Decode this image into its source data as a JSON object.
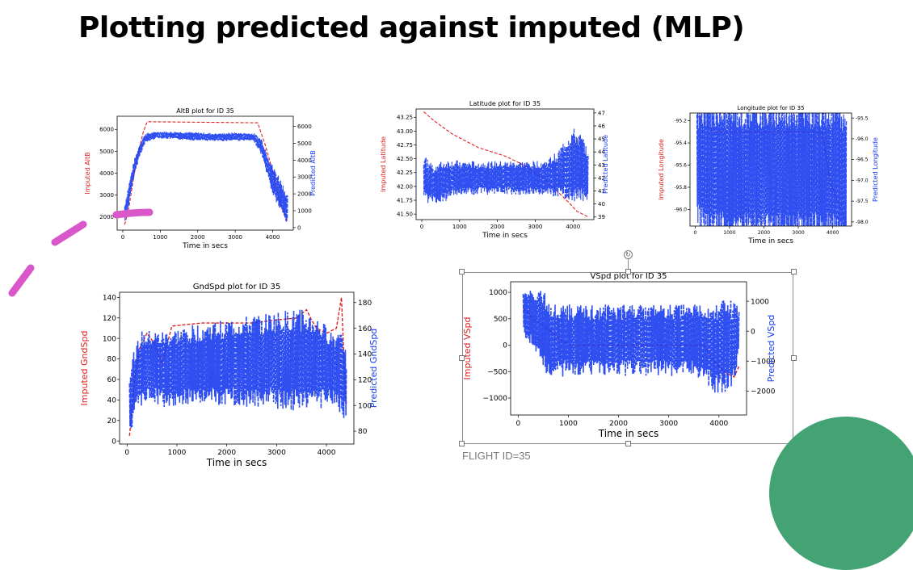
{
  "slide": {
    "title": "Plotting predicted against imputed (MLP)",
    "caption": "FLIGHT ID=35"
  },
  "colors": {
    "imputed": "#dd2222",
    "predicted": "#1a3cf0",
    "accent_green": "#44a373",
    "annotation_pink": "#d957c8"
  },
  "chart_data": [
    {
      "type": "line",
      "title": "AltB plot for ID 35",
      "xlabel": "Time in secs",
      "ylabel_left": "Imputed AltB",
      "ylabel_right": "Predicted AltB",
      "xlim": [
        -150,
        4550
      ],
      "ylim_left": [
        1400,
        6600
      ],
      "ylim_right": [
        -150,
        6600
      ],
      "xticks": [
        0,
        1000,
        2000,
        3000,
        4000
      ],
      "yticks_left": [
        2000,
        3000,
        4000,
        5000,
        6000
      ],
      "yticks_right": [
        0,
        1000,
        2000,
        3000,
        4000,
        5000,
        6000
      ],
      "series": [
        {
          "name": "Imputed AltB",
          "axis": "left",
          "style": "dashed",
          "x": [
            50,
            150,
            300,
            450,
            550,
            650,
            3600,
            3800,
            4000,
            4100,
            4200,
            4400
          ],
          "y": [
            1650,
            2300,
            3900,
            5200,
            5900,
            6350,
            6300,
            5300,
            4100,
            3300,
            2600,
            1800
          ]
        },
        {
          "name": "Predicted AltB",
          "axis": "right",
          "style": "noisy",
          "x": [
            50,
            150,
            300,
            450,
            600,
            900,
            1500,
            2000,
            2500,
            3000,
            3500,
            3700,
            3850,
            4000,
            4150,
            4300,
            4400
          ],
          "y": [
            800,
            1800,
            3500,
            4600,
            5300,
            5500,
            5450,
            5400,
            5350,
            5400,
            5350,
            4800,
            3800,
            2800,
            2200,
            1500,
            1000
          ],
          "spread": [
            600,
            700,
            500,
            400,
            300,
            200,
            250,
            250,
            250,
            250,
            250,
            500,
            700,
            900,
            1000,
            1000,
            900
          ]
        }
      ]
    },
    {
      "type": "line",
      "title": "Latitude plot for ID 35",
      "xlabel": "Time in secs",
      "ylabel_left": "Imputed Latitude",
      "ylabel_right": "Predicted Latitude",
      "xlim": [
        -150,
        4550
      ],
      "ylim_left": [
        41.4,
        43.4
      ],
      "ylim_right": [
        38.8,
        47.3
      ],
      "xticks": [
        0,
        1000,
        2000,
        3000,
        4000
      ],
      "yticks_left": [
        41.5,
        41.75,
        42.0,
        42.25,
        42.5,
        42.75,
        43.0,
        43.25
      ],
      "yticks_left_labels": [
        "41.50",
        "41.75",
        "42.00",
        "42.25",
        "42.50",
        "42.75",
        "43.00",
        "43.25"
      ],
      "yticks_right": [
        39,
        40,
        41,
        42,
        43,
        44,
        45,
        46,
        47
      ],
      "series": [
        {
          "name": "Imputed Latitude",
          "axis": "left",
          "style": "dashed",
          "x": [
            50,
            300,
            800,
            1500,
            2200,
            2800,
            3300,
            3600,
            3900,
            4100,
            4400
          ],
          "y": [
            43.35,
            43.2,
            42.95,
            42.7,
            42.55,
            42.35,
            42.1,
            41.9,
            41.7,
            41.55,
            41.45
          ]
        },
        {
          "name": "Predicted Latitude",
          "axis": "right",
          "style": "noisy",
          "x": [
            50,
            300,
            650,
            700,
            1200,
            2000,
            2800,
            3300,
            3600,
            3800,
            4000,
            4200,
            4400
          ],
          "y": [
            42.0,
            41.5,
            41.8,
            42.0,
            42.0,
            42.0,
            42.0,
            42.0,
            42.3,
            42.7,
            43.0,
            42.8,
            42.3
          ],
          "spread": [
            1.8,
            1.6,
            1.6,
            1.4,
            1.3,
            1.3,
            1.3,
            1.4,
            1.8,
            2.4,
            2.9,
            2.6,
            2.2
          ]
        }
      ]
    },
    {
      "type": "line",
      "title": "Longitude plot for ID 35",
      "xlabel": "Time in secs",
      "ylabel_left": "Imputed Longitude",
      "ylabel_right": "Predicted Longitude",
      "xlim": [
        -150,
        4550
      ],
      "ylim_left": [
        -96.15,
        -95.13
      ],
      "ylim_right": [
        -98.1,
        -95.38
      ],
      "xticks": [
        0,
        1000,
        2000,
        3000,
        4000
      ],
      "yticks_left": [
        -96.0,
        -95.8,
        -95.6,
        -95.4,
        -95.2
      ],
      "yticks_left_labels": [
        "-96.0",
        "-95.8",
        "-95.6",
        "-95.4",
        "-95.2"
      ],
      "yticks_right": [
        -98.0,
        -97.5,
        -97.0,
        -96.5,
        -96.0,
        -95.5
      ],
      "yticks_right_labels": [
        "-98.0",
        "-97.5",
        "-97.0",
        "-96.5",
        "-96.0",
        "-95.5"
      ],
      "series": [
        {
          "name": "Imputed Longitude",
          "axis": "left",
          "style": "dashed",
          "x": [
            50,
            200,
            400,
            600,
            3700,
            3900,
            4100,
            4300,
            4400
          ],
          "y": [
            -95.15,
            -95.2,
            -95.26,
            -95.3,
            -95.3,
            -95.7,
            -95.9,
            -96.05,
            -96.12
          ]
        },
        {
          "name": "Predicted Longitude",
          "axis": "right",
          "style": "noisy",
          "x": [
            50,
            300,
            600,
            1000,
            2000,
            3000,
            3700,
            4000,
            4300,
            4400
          ],
          "y": [
            -96.6,
            -96.7,
            -96.75,
            -96.75,
            -96.75,
            -96.75,
            -96.75,
            -96.8,
            -96.9,
            -97.0
          ],
          "spread": [
            1.5,
            1.7,
            1.8,
            1.8,
            1.8,
            1.8,
            1.8,
            1.8,
            1.8,
            1.7
          ]
        }
      ]
    },
    {
      "type": "line",
      "title": "GndSpd plot for ID 35",
      "xlabel": "Time in secs",
      "ylabel_left": "Imputed GndSpd",
      "ylabel_right": "Predicted GndSpd",
      "xlim": [
        -150,
        4550
      ],
      "ylim_left": [
        -3,
        145
      ],
      "ylim_right": [
        70,
        188
      ],
      "xticks": [
        0,
        1000,
        2000,
        3000,
        4000
      ],
      "yticks_left": [
        0,
        20,
        40,
        60,
        80,
        100,
        120,
        140
      ],
      "yticks_right": [
        80,
        100,
        120,
        140,
        160,
        180
      ],
      "series": [
        {
          "name": "Imputed GndSpd",
          "axis": "left",
          "style": "dashed",
          "x": [
            50,
            150,
            250,
            400,
            550,
            700,
            900,
            1500,
            2000,
            2500,
            3000,
            3400,
            3600,
            3700,
            3800,
            4000,
            4200,
            4300,
            4350,
            4400
          ],
          "y": [
            5,
            60,
            90,
            105,
            95,
            75,
            112,
            115,
            115,
            115,
            118,
            120,
            128,
            118,
            110,
            105,
            110,
            140,
            80,
            35
          ]
        },
        {
          "name": "Predicted GndSpd",
          "axis": "right",
          "style": "noisy",
          "x": [
            50,
            150,
            300,
            500,
            700,
            1000,
            1500,
            2000,
            2500,
            3000,
            3500,
            3800,
            4000,
            4200,
            4300,
            4400
          ],
          "y": [
            100,
            120,
            128,
            130,
            128,
            130,
            132,
            133,
            134,
            135,
            135,
            133,
            130,
            128,
            130,
            115
          ],
          "spread": [
            30,
            25,
            30,
            28,
            30,
            30,
            32,
            34,
            36,
            38,
            40,
            36,
            32,
            28,
            40,
            25
          ]
        }
      ]
    },
    {
      "type": "line",
      "title": "VSpd plot for ID 35",
      "xlabel": "Time in secs",
      "ylabel_left": "Imputed VSpd",
      "ylabel_right": "Predicted VSpd",
      "xlim": [
        -150,
        4550
      ],
      "ylim_left": [
        -1320,
        1200
      ],
      "ylim_right": [
        -2800,
        1650
      ],
      "xticks": [
        0,
        1000,
        2000,
        3000,
        4000
      ],
      "yticks_left": [
        -1000,
        -500,
        0,
        500,
        1000
      ],
      "yticks_left_labels": [
        "−1000",
        "−500",
        "0",
        "500",
        "1000"
      ],
      "yticks_right": [
        -2000,
        -1000,
        0,
        1000
      ],
      "yticks_right_labels": [
        "−2000",
        "−1000",
        "0",
        "1000"
      ],
      "series": [
        {
          "name": "Imputed VSpd",
          "axis": "left",
          "style": "dashed",
          "x": [
            100,
            300,
            600,
            1000,
            2000,
            3000,
            3700,
            3900,
            4100,
            4300,
            4400
          ],
          "y": [
            700,
            500,
            300,
            0,
            0,
            0,
            0,
            -300,
            -500,
            -600,
            -400
          ]
        },
        {
          "name": "Predicted VSpd",
          "axis": "right",
          "style": "noisy",
          "x": [
            100,
            300,
            500,
            700,
            1000,
            1500,
            2000,
            2500,
            3000,
            3500,
            3700,
            3900,
            4100,
            4300,
            4400
          ],
          "y": [
            600,
            400,
            0,
            -300,
            -300,
            -300,
            -300,
            -300,
            -300,
            -300,
            -400,
            -600,
            -500,
            -400,
            0
          ],
          "spread": [
            800,
            1000,
            1400,
            1300,
            1200,
            1200,
            1200,
            1200,
            1200,
            1200,
            1300,
            1500,
            1600,
            1400,
            900
          ]
        }
      ]
    }
  ]
}
